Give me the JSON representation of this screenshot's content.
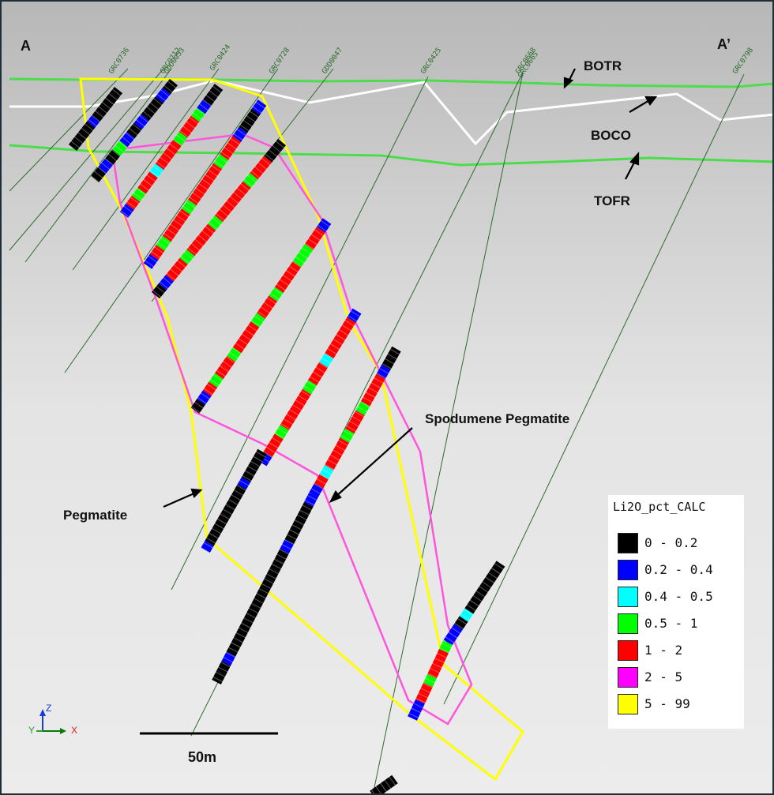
{
  "section": {
    "left_label": "A",
    "right_label": "A’"
  },
  "horizons": [
    {
      "name": "BOTR",
      "color": "#4cdc4c"
    },
    {
      "name": "BOCO",
      "color": "#ffffff"
    },
    {
      "name": "TOFR",
      "color": "#4cdc4c"
    }
  ],
  "drill_holes": [
    "GRC0736",
    "GRC0712",
    "GDD0053",
    "GRC0424",
    "GRC0728",
    "GDD0047",
    "GRC0425",
    "GRC0668",
    "GRC0665",
    "GRC0798"
  ],
  "annotations": {
    "spodumene": "Spodumene Pegmatite",
    "pegmatite": "Pegmatite"
  },
  "scale_bar": {
    "label": "50m"
  },
  "axes": {
    "z": "Z",
    "y": "Y",
    "x": "X"
  },
  "legend": {
    "title": "Li2O_pct_CALC",
    "items": [
      {
        "range": "0 - 0.2",
        "color": "#000000"
      },
      {
        "range": "0.2 - 0.4",
        "color": "#0000ff"
      },
      {
        "range": "0.4 - 0.5",
        "color": "#00ffff"
      },
      {
        "range": "0.5 - 1",
        "color": "#00ff00"
      },
      {
        "range": "1 - 2",
        "color": "#ff0000"
      },
      {
        "range": "2 - 5",
        "color": "#ff00ff"
      },
      {
        "range": "5 - 99",
        "color": "#ffff00"
      }
    ]
  }
}
